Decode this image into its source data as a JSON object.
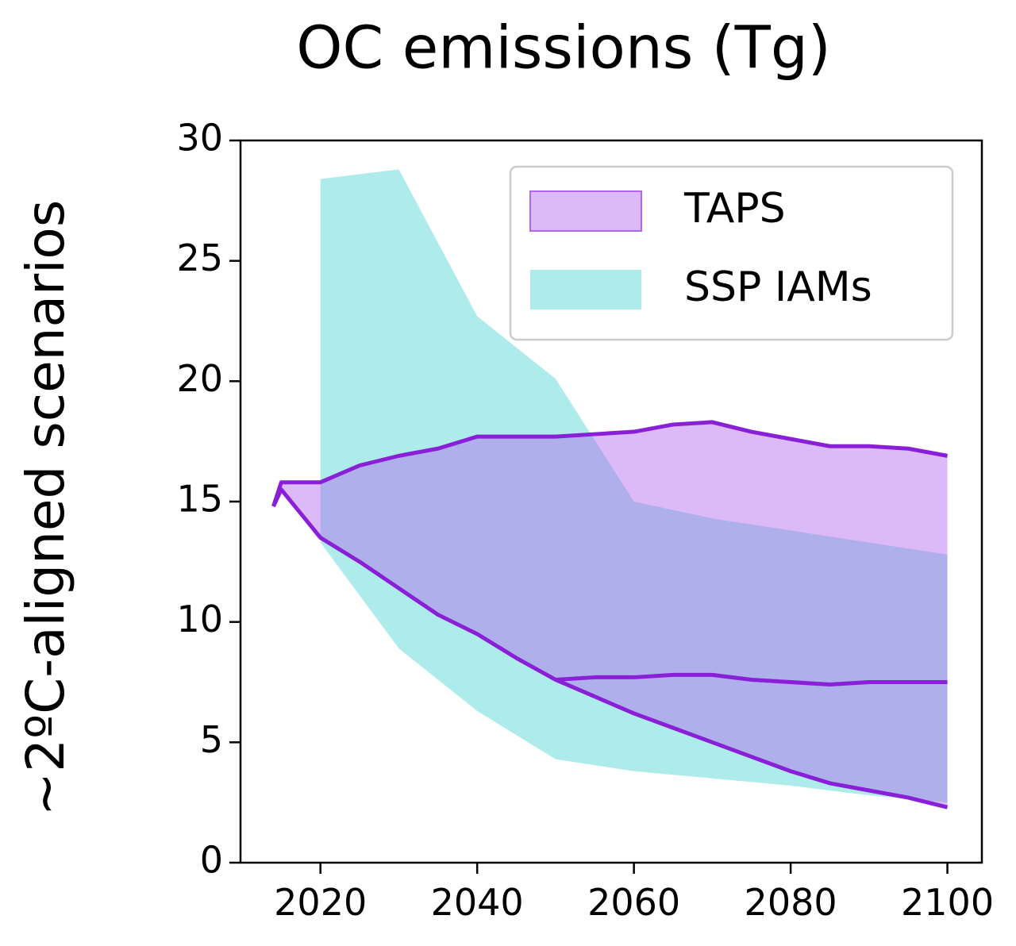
{
  "chart_data": {
    "type": "area",
    "title": "OC emissions (Tg)",
    "y_label": "~2ºC-aligned scenarios",
    "xlim": [
      2009.8,
      2104.4
    ],
    "xticks": [
      2020,
      2040,
      2060,
      2080,
      2100
    ],
    "ylim": [
      0,
      30
    ],
    "yticks": [
      0,
      5,
      10,
      15,
      20,
      25,
      30
    ],
    "legend": "upper right",
    "series": [
      {
        "name": "TAPS",
        "color": "#b266ee",
        "line_color": "#8a1fd8",
        "x": [
          2014,
          2015,
          2020,
          2025,
          2030,
          2035,
          2040,
          2045,
          2050,
          2055,
          2060,
          2065,
          2070,
          2075,
          2080,
          2085,
          2090,
          2095,
          2100
        ],
        "upper": [
          14.8,
          15.8,
          15.8,
          16.5,
          16.9,
          17.2,
          17.7,
          17.7,
          17.7,
          17.8,
          17.9,
          18.2,
          18.3,
          17.9,
          17.6,
          17.3,
          17.3,
          17.2,
          16.9
        ],
        "lower": [
          14.8,
          15.5,
          13.5,
          12.5,
          11.4,
          10.3,
          9.5,
          8.5,
          7.6,
          6.9,
          6.2,
          5.6,
          5.0,
          4.4,
          3.8,
          3.3,
          3.0,
          2.7,
          2.3
        ],
        "median": [
          null,
          null,
          null,
          null,
          null,
          null,
          null,
          null,
          7.6,
          7.7,
          7.7,
          7.8,
          7.8,
          7.6,
          7.5,
          7.4,
          7.5,
          7.5,
          7.5
        ]
      },
      {
        "name": "SSP IAMs",
        "color": "#aeeceb",
        "x": [
          2020,
          2030,
          2040,
          2050,
          2060,
          2070,
          2080,
          2090,
          2100
        ],
        "upper": [
          28.4,
          28.8,
          22.7,
          20.1,
          15.0,
          14.3,
          13.8,
          13.3,
          12.8
        ],
        "lower": [
          13.3,
          8.9,
          6.3,
          4.3,
          3.8,
          3.5,
          3.2,
          2.8,
          2.5
        ]
      }
    ]
  }
}
